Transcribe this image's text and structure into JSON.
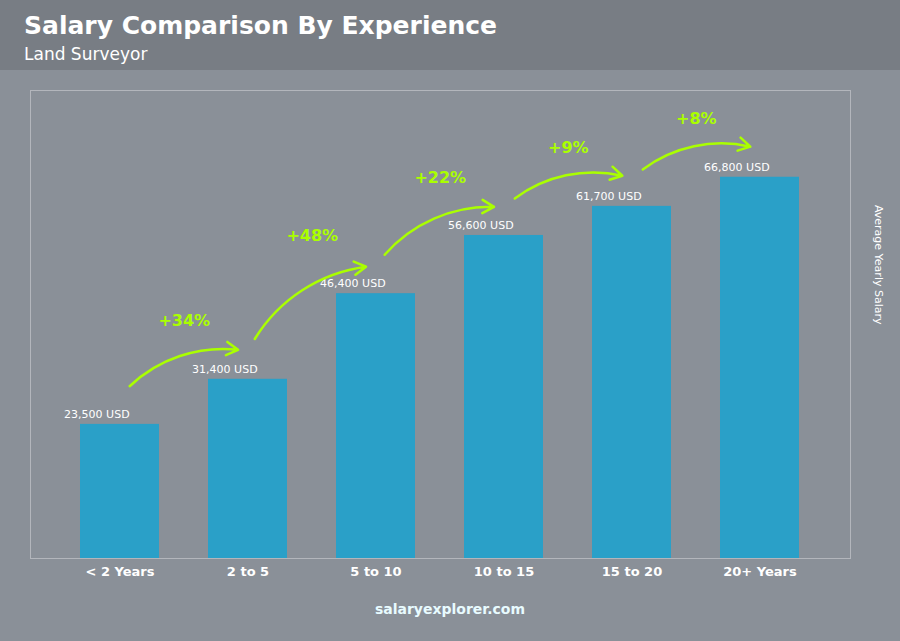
{
  "chart_data": {
    "type": "bar",
    "title": "Salary Comparison By Experience",
    "subtitle": "Land Surveyor",
    "categories": [
      "< 2 Years",
      "2 to 5",
      "5 to 10",
      "10 to 15",
      "15 to 20",
      "20+ Years"
    ],
    "values": [
      23500,
      31400,
      46400,
      56600,
      61700,
      66800
    ],
    "value_labels": [
      "23,500 USD",
      "31,400 USD",
      "46,400 USD",
      "56,600 USD",
      "61,700 USD",
      "66,800 USD"
    ],
    "data_labels": true,
    "color": "#2aa0c8",
    "ylabel": "Average Yearly Salary",
    "ylim": [
      0,
      82000
    ],
    "yticks": [],
    "tick_labels": "x",
    "grid": false,
    "annotations": [
      {
        "text": "+34%",
        "from": "< 2 Years",
        "to": "2 to 5",
        "color": "#aaff00"
      },
      {
        "text": "+48%",
        "from": "2 to 5",
        "to": "5 to 10",
        "color": "#aaff00"
      },
      {
        "text": "+22%",
        "from": "5 to 10",
        "to": "10 to 15",
        "color": "#aaff00"
      },
      {
        "text": "+9%",
        "from": "10 to 15",
        "to": "15 to 20",
        "color": "#aaff00"
      },
      {
        "text": "+8%",
        "from": "15 to 20",
        "to": "20+ Years",
        "color": "#aaff00"
      }
    ],
    "caption": "salaryexplorer.com"
  }
}
